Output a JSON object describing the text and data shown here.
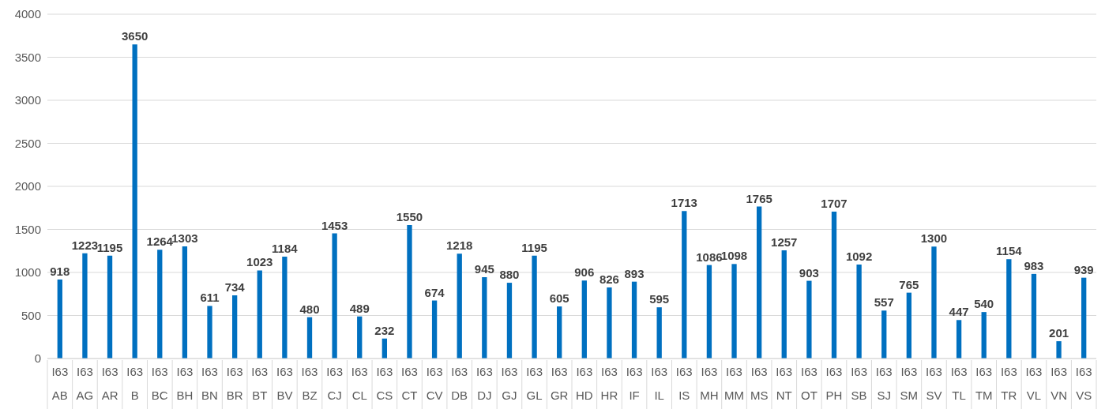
{
  "chart_data": {
    "type": "bar",
    "categories": [
      "I63\nAB",
      "I63\nAG",
      "I63\nAR",
      "I63\nB",
      "I63\nBC",
      "I63\nBH",
      "I63\nBN",
      "I63\nBR",
      "I63\nBT",
      "I63\nBV",
      "I63\nBZ",
      "I63\nCJ",
      "I63\nCL",
      "I63\nCS",
      "I63\nCT",
      "I63\nCV",
      "I63\nDB",
      "I63\nDJ",
      "I63\nGJ",
      "I63\nGL",
      "I63\nGR",
      "I63\nHD",
      "I63\nHR",
      "I63\nIF",
      "I63\nIL",
      "I63\nIS",
      "I63\nMH",
      "I63\nMM",
      "I63\nMS",
      "I63\nNT",
      "I63\nOT",
      "I63\nPH",
      "I63\nSB",
      "I63\nSJ",
      "I63\nSM",
      "I63\nSV",
      "I63\nTL",
      "I63\nTM",
      "I63\nTR",
      "I63\nVL",
      "I63\nVN",
      "I63\nVS"
    ],
    "values": [
      918,
      1223,
      1195,
      3650,
      1264,
      1303,
      611,
      734,
      1023,
      1184,
      480,
      1453,
      489,
      232,
      1550,
      674,
      1218,
      945,
      880,
      1195,
      605,
      906,
      826,
      893,
      595,
      1713,
      1086,
      1098,
      1765,
      1257,
      903,
      1707,
      1092,
      557,
      765,
      1300,
      447,
      540,
      1154,
      983,
      201,
      939
    ],
    "color": "#0070c0",
    "ylim": [
      0,
      4000
    ],
    "yticks": [
      0,
      500,
      1000,
      1500,
      2000,
      2500,
      3000,
      3500,
      4000
    ],
    "grid": "y",
    "data_labels": true
  }
}
